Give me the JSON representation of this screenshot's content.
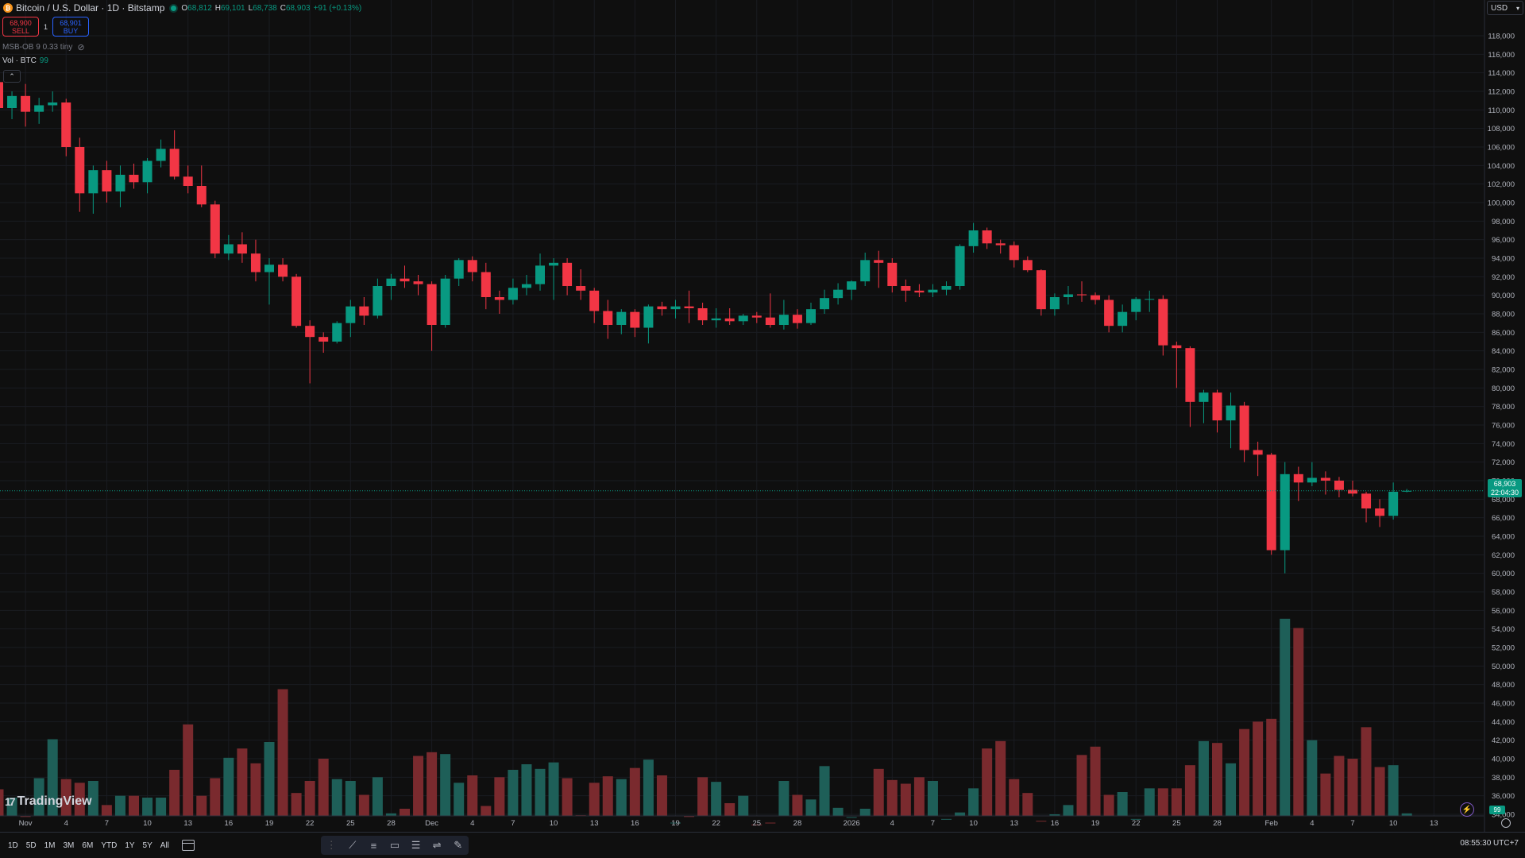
{
  "header": {
    "symbol": "Bitcoin / U.S. Dollar · 1D · Bitstamp",
    "btc_icon_text": "₿",
    "open_label": "O",
    "open": "68,812",
    "high_label": "H",
    "high": "69,101",
    "low_label": "L",
    "low": "68,738",
    "close_label": "C",
    "close": "68,903",
    "change": "+91 (+0.13%)"
  },
  "trade": {
    "sell_price": "68,900",
    "sell_label": "SELL",
    "spread": "1",
    "buy_price": "68,901",
    "buy_label": "BUY"
  },
  "indicator": {
    "label": "MSB-OB 9 0.33 tiny"
  },
  "volume_legend": {
    "label": "Vol · BTC",
    "value": "99"
  },
  "currency": {
    "value": "USD"
  },
  "price_tag": {
    "price": "68,903",
    "countdown": "22:04:30"
  },
  "volume_tag": {
    "value": "99"
  },
  "logo": {
    "text": "TradingView",
    "mark": "17"
  },
  "bottom": {
    "ranges": [
      "1D",
      "5D",
      "1M",
      "3M",
      "6M",
      "YTD",
      "1Y",
      "5Y",
      "All"
    ],
    "clock": "08:55:30 UTC+7"
  },
  "colors": {
    "up": "#089981",
    "down": "#f23645",
    "vol_up": "#1e5f58",
    "vol_down": "#7a2a2e",
    "bg": "#0f0f0f",
    "grid": "#1a1c22",
    "axis_text": "#b2b5be"
  },
  "chart_data": {
    "type": "candlestick",
    "y_axis_ticks": [
      "118,000",
      "116,000",
      "114,000",
      "112,000",
      "110,000",
      "108,000",
      "106,000",
      "104,000",
      "102,000",
      "100,000",
      "98,000",
      "96,000",
      "94,000",
      "92,000",
      "90,000",
      "88,000",
      "86,000",
      "84,000",
      "82,000",
      "80,000",
      "78,000",
      "76,000",
      "74,000",
      "72,000",
      "70,000",
      "68,000",
      "66,000",
      "64,000",
      "62,000",
      "60,000",
      "58,000",
      "56,000",
      "54,000",
      "52,000",
      "50,000",
      "48,000",
      "46,000",
      "44,000",
      "42,000",
      "40,000",
      "38,000",
      "36,000",
      "34,000"
    ],
    "ylim": [
      33000,
      119000
    ],
    "x_axis_labels": [
      {
        "i": 2,
        "label": "Nov"
      },
      {
        "i": 5,
        "label": "4"
      },
      {
        "i": 8,
        "label": "7"
      },
      {
        "i": 11,
        "label": "10"
      },
      {
        "i": 14,
        "label": "13"
      },
      {
        "i": 17,
        "label": "16"
      },
      {
        "i": 20,
        "label": "19"
      },
      {
        "i": 23,
        "label": "22"
      },
      {
        "i": 26,
        "label": "25"
      },
      {
        "i": 29,
        "label": "28"
      },
      {
        "i": 32,
        "label": "Dec"
      },
      {
        "i": 35,
        "label": "4"
      },
      {
        "i": 38,
        "label": "7"
      },
      {
        "i": 41,
        "label": "10"
      },
      {
        "i": 44,
        "label": "13"
      },
      {
        "i": 47,
        "label": "16"
      },
      {
        "i": 50,
        "label": "19"
      },
      {
        "i": 53,
        "label": "22"
      },
      {
        "i": 56,
        "label": "25"
      },
      {
        "i": 59,
        "label": "28"
      },
      {
        "i": 63,
        "label": "2026"
      },
      {
        "i": 66,
        "label": "4"
      },
      {
        "i": 69,
        "label": "7"
      },
      {
        "i": 72,
        "label": "10"
      },
      {
        "i": 75,
        "label": "13"
      },
      {
        "i": 78,
        "label": "16"
      },
      {
        "i": 81,
        "label": "19"
      },
      {
        "i": 84,
        "label": "22"
      },
      {
        "i": 87,
        "label": "25"
      },
      {
        "i": 90,
        "label": "28"
      },
      {
        "i": 94,
        "label": "Feb"
      },
      {
        "i": 97,
        "label": "4"
      },
      {
        "i": 100,
        "label": "7"
      },
      {
        "i": 103,
        "label": "10"
      },
      {
        "i": 106,
        "label": "13"
      }
    ],
    "last_price": 68903,
    "candles": [
      [
        113000,
        114500,
        107000,
        110200
      ],
      [
        110200,
        112000,
        109000,
        111500
      ],
      [
        111500,
        112800,
        108200,
        109800
      ],
      [
        109800,
        111300,
        108500,
        110500
      ],
      [
        110500,
        112000,
        109800,
        110800
      ],
      [
        110800,
        111200,
        105000,
        106000
      ],
      [
        106000,
        107000,
        99000,
        101000
      ],
      [
        101000,
        104000,
        98800,
        103500
      ],
      [
        103500,
        104500,
        100000,
        101200
      ],
      [
        101200,
        104000,
        99500,
        103000
      ],
      [
        103000,
        104200,
        101500,
        102200
      ],
      [
        102200,
        104800,
        101000,
        104500
      ],
      [
        104500,
        106800,
        103800,
        105800
      ],
      [
        105800,
        107800,
        102500,
        102800
      ],
      [
        102800,
        104000,
        101000,
        101800
      ],
      [
        101800,
        104000,
        99500,
        99800
      ],
      [
        99800,
        100200,
        94000,
        94500
      ],
      [
        94500,
        96500,
        93800,
        95500
      ],
      [
        95500,
        96800,
        93500,
        94500
      ],
      [
        94500,
        96000,
        91500,
        92500
      ],
      [
        92500,
        94000,
        89000,
        93300
      ],
      [
        93300,
        94000,
        91500,
        92000
      ],
      [
        92000,
        92300,
        86500,
        86700
      ],
      [
        86700,
        87300,
        80500,
        85500
      ],
      [
        85500,
        86000,
        83800,
        85000
      ],
      [
        85000,
        87200,
        84800,
        87000
      ],
      [
        87000,
        89500,
        85500,
        88800
      ],
      [
        88800,
        89800,
        86800,
        87800
      ],
      [
        87800,
        91800,
        87500,
        91000
      ],
      [
        91000,
        92300,
        89500,
        91800
      ],
      [
        91800,
        93200,
        90800,
        91500
      ],
      [
        91500,
        92200,
        90000,
        91200
      ],
      [
        91200,
        91500,
        84000,
        86800
      ],
      [
        86800,
        92200,
        86500,
        91800
      ],
      [
        91800,
        94000,
        91000,
        93800
      ],
      [
        93800,
        94200,
        91500,
        92500
      ],
      [
        92500,
        93500,
        88500,
        89800
      ],
      [
        89800,
        90500,
        88000,
        89500
      ],
      [
        89500,
        91800,
        89000,
        90800
      ],
      [
        90800,
        92200,
        90000,
        91200
      ],
      [
        91200,
        94500,
        90500,
        93200
      ],
      [
        93200,
        94000,
        89500,
        93500
      ],
      [
        93500,
        94000,
        90000,
        91000
      ],
      [
        91000,
        92800,
        89500,
        90500
      ],
      [
        90500,
        90800,
        87000,
        88300
      ],
      [
        88300,
        89500,
        85300,
        86800
      ],
      [
        86800,
        88500,
        85800,
        88200
      ],
      [
        88200,
        88500,
        85500,
        86500
      ],
      [
        86500,
        89000,
        84800,
        88800
      ],
      [
        88800,
        89300,
        87800,
        88500
      ],
      [
        88500,
        89500,
        87500,
        88800
      ],
      [
        88800,
        90500,
        87000,
        88600
      ],
      [
        88600,
        89200,
        86800,
        87300
      ],
      [
        87300,
        88600,
        86500,
        87500
      ],
      [
        87500,
        88600,
        86800,
        87200
      ],
      [
        87200,
        88000,
        86800,
        87800
      ],
      [
        87800,
        88200,
        87000,
        87600
      ],
      [
        87600,
        90200,
        86500,
        86800
      ],
      [
        86800,
        89500,
        86300,
        87900
      ],
      [
        87900,
        88500,
        86400,
        87000
      ],
      [
        87000,
        89200,
        86800,
        88500
      ],
      [
        88500,
        90600,
        88000,
        89700
      ],
      [
        89700,
        91300,
        89000,
        90600
      ],
      [
        90600,
        91600,
        89500,
        91500
      ],
      [
        91500,
        94600,
        91000,
        93800
      ],
      [
        93800,
        94800,
        90800,
        93500
      ],
      [
        93500,
        94000,
        90300,
        91000
      ],
      [
        91000,
        91700,
        89300,
        90500
      ],
      [
        90500,
        91200,
        89800,
        90300
      ],
      [
        90300,
        91200,
        89800,
        90600
      ],
      [
        90600,
        91500,
        90000,
        91000
      ],
      [
        91000,
        95500,
        90600,
        95300
      ],
      [
        95300,
        97800,
        94600,
        97000
      ],
      [
        97000,
        97300,
        95000,
        95600
      ],
      [
        95600,
        96000,
        94500,
        95400
      ],
      [
        95400,
        95800,
        93000,
        93800
      ],
      [
        93800,
        94200,
        92500,
        92700
      ],
      [
        92700,
        92800,
        87800,
        88500
      ],
      [
        88500,
        90200,
        87800,
        89800
      ],
      [
        89800,
        91000,
        89000,
        90100
      ],
      [
        90100,
        91500,
        89300,
        90000
      ],
      [
        90000,
        90300,
        89000,
        89500
      ],
      [
        89500,
        90000,
        86000,
        86700
      ],
      [
        86700,
        89000,
        86000,
        88200
      ],
      [
        88200,
        89800,
        87300,
        89600
      ],
      [
        89600,
        90500,
        88200,
        89600
      ],
      [
        89600,
        90000,
        83500,
        84600
      ],
      [
        84600,
        85000,
        80000,
        84300
      ],
      [
        84300,
        84500,
        75800,
        78500
      ],
      [
        78500,
        79800,
        76200,
        79500
      ],
      [
        79500,
        79800,
        75200,
        76500
      ],
      [
        76500,
        79500,
        73500,
        78100
      ],
      [
        78100,
        78500,
        72000,
        73300
      ],
      [
        73300,
        74200,
        70500,
        72800
      ],
      [
        72800,
        73000,
        62000,
        62500
      ],
      [
        62500,
        72000,
        60000,
        70700
      ],
      [
        70700,
        71500,
        67800,
        69800
      ],
      [
        69800,
        72000,
        69400,
        70300
      ],
      [
        70300,
        71000,
        68500,
        70000
      ],
      [
        70000,
        70400,
        68200,
        69000
      ],
      [
        69000,
        70000,
        68300,
        68600
      ],
      [
        68600,
        68800,
        65500,
        67000
      ],
      [
        67000,
        68000,
        65000,
        66200
      ],
      [
        66200,
        69800,
        65800,
        68800
      ],
      [
        68812,
        69101,
        68738,
        68903
      ]
    ],
    "volume": [
      36.7,
      35.8,
      33.8,
      37.9,
      42.1,
      37.8,
      37.4,
      37.6,
      35.0,
      36.0,
      36.0,
      35.8,
      35.8,
      38.8,
      43.7,
      36.0,
      37.9,
      40.1,
      41.1,
      39.5,
      41.8,
      47.5,
      36.3,
      37.6,
      40.0,
      37.8,
      37.6,
      36.1,
      38.0,
      34.1,
      34.6,
      40.3,
      40.7,
      40.5,
      37.4,
      38.2,
      34.9,
      38.0,
      38.8,
      39.4,
      38.9,
      39.6,
      37.9,
      33.9,
      37.4,
      38.1,
      37.8,
      39.0,
      39.9,
      38.2,
      33.1,
      33.8,
      38.0,
      37.5,
      35.2,
      36.0,
      32.9,
      33.1,
      37.6,
      36.1,
      35.6,
      39.2,
      34.7,
      33.7,
      34.6,
      38.9,
      37.7,
      37.3,
      38.0,
      37.6,
      33.5,
      34.2,
      36.8,
      41.1,
      41.9,
      37.8,
      36.3,
      33.3,
      34.0,
      35.0,
      40.4,
      41.3,
      36.1,
      36.4,
      33.5,
      36.8,
      36.8,
      36.8,
      39.3,
      41.9,
      41.7,
      39.5,
      43.2,
      44.0,
      44.3,
      55.1,
      54.1,
      42.0,
      38.4,
      40.3,
      40.0,
      43.4,
      39.1,
      39.3,
      34.1
    ],
    "volume_scale": "volume bars share the price axis region from 33,000 to 56,000 (relative height)"
  }
}
